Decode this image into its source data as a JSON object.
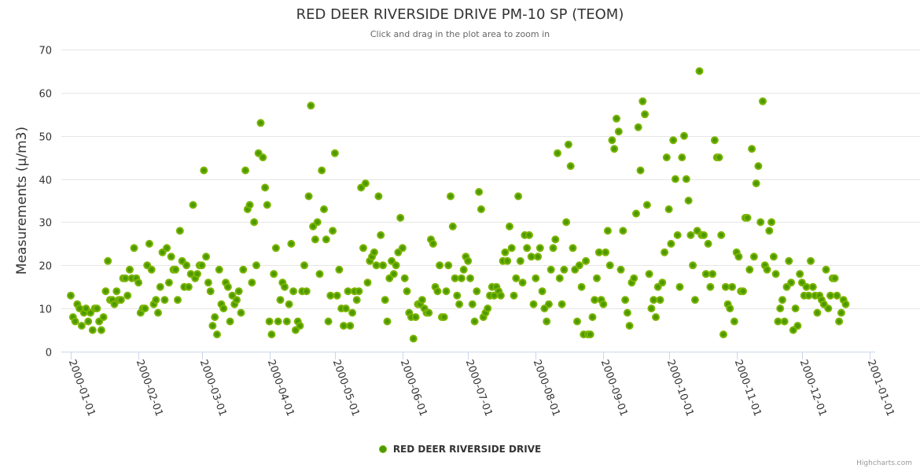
{
  "chart_data": {
    "type": "scatter",
    "title": "RED DEER RIVERSIDE DRIVE PM-10 SP (TEOM)",
    "subtitle": "Click and drag in the plot area to zoom in",
    "xlabel": "",
    "ylabel": "Measurements (µ/m3)",
    "ylim": [
      0,
      70
    ],
    "yticks": [
      "0",
      "10",
      "20",
      "30",
      "40",
      "50",
      "60",
      "70"
    ],
    "xlim": [
      "2000-01-01",
      "2001-01-01"
    ],
    "xticks": [
      "2000-01-01",
      "2000-02-01",
      "2000-03-01",
      "2000-04-01",
      "2000-05-01",
      "2000-06-01",
      "2000-07-01",
      "2000-08-01",
      "2000-09-01",
      "2000-10-01",
      "2000-11-01",
      "2000-12-01",
      "2001-01-01"
    ],
    "grid": true,
    "legend_position": "bottom-center",
    "series": [
      {
        "name": "RED DEER RIVERSIDE DRIVE",
        "start": "2000-01-01",
        "values": [
          13,
          8,
          7,
          11,
          10,
          6,
          9,
          10,
          7,
          9,
          5,
          10,
          10,
          7,
          5,
          8,
          14,
          21,
          12,
          12,
          11,
          14,
          12,
          12,
          17,
          17,
          13,
          19,
          17,
          24,
          17,
          16,
          9,
          10,
          10,
          20,
          25,
          19,
          11,
          12,
          9,
          15,
          23,
          12,
          24,
          16,
          22,
          19,
          19,
          12,
          28,
          21,
          15,
          20,
          15,
          18,
          34,
          17,
          18,
          20,
          20,
          42,
          22,
          16,
          14,
          6,
          8,
          4,
          19,
          11,
          10,
          16,
          15,
          7,
          13,
          11,
          12,
          14,
          9,
          19,
          42,
          33,
          34,
          16,
          30,
          20,
          46,
          53,
          45,
          38,
          34,
          7,
          4,
          18,
          24,
          7,
          12,
          16,
          15,
          7,
          11,
          25,
          14,
          5,
          7,
          6,
          14,
          20,
          14,
          36,
          57,
          29,
          26,
          30,
          18,
          42,
          33,
          26,
          7,
          13,
          28,
          46,
          13,
          19,
          10,
          6,
          10,
          14,
          6,
          9,
          14,
          12,
          14,
          38,
          24,
          39,
          16,
          21,
          22,
          23,
          20,
          36,
          27,
          20,
          12,
          7,
          17,
          21,
          18,
          20,
          23,
          31,
          24,
          17,
          14,
          9,
          8,
          3,
          8,
          11,
          11,
          12,
          10,
          9,
          9,
          26,
          25,
          15,
          14,
          20,
          8,
          8,
          14,
          20,
          36,
          29,
          17,
          13,
          11,
          17,
          19,
          22,
          21,
          17,
          11,
          7,
          14,
          37,
          33,
          8,
          9,
          10,
          13,
          15,
          13,
          15,
          14,
          13,
          21,
          23,
          21,
          29,
          24,
          13,
          17,
          36,
          21,
          16,
          27,
          24,
          27,
          22,
          11,
          17,
          22,
          24,
          14,
          10,
          7,
          11,
          19,
          24,
          26,
          46,
          17,
          11,
          19,
          30,
          48,
          43,
          24,
          19,
          7,
          20,
          15,
          4,
          21,
          4,
          4,
          8,
          12,
          17,
          23,
          12,
          11,
          23,
          28,
          20,
          49,
          47,
          54,
          51,
          19,
          28,
          12,
          9,
          6,
          16,
          17,
          32,
          52,
          42,
          58,
          55,
          34,
          18,
          10,
          12,
          8,
          15,
          12,
          16,
          23,
          45,
          33,
          25,
          49,
          40,
          27,
          15,
          45,
          50,
          40,
          35,
          27,
          20,
          12,
          28,
          65,
          27,
          27,
          18,
          25,
          15,
          18,
          49,
          45,
          45,
          27,
          4,
          15,
          11,
          10,
          15,
          7,
          23,
          22,
          14,
          14,
          31,
          31,
          19,
          47,
          22,
          39,
          43,
          30,
          58,
          20,
          19,
          28,
          30,
          22,
          18,
          7,
          10,
          12,
          7,
          15,
          21,
          16,
          5,
          10,
          6,
          18,
          16,
          13,
          15,
          13,
          21,
          15,
          13,
          9,
          13,
          12,
          11,
          19,
          10,
          13,
          17,
          17,
          13,
          7,
          9,
          12,
          11
        ]
      }
    ]
  },
  "legend": {
    "label": "RED DEER RIVERSIDE DRIVE"
  },
  "credits": "Highcharts.com",
  "colors": {
    "marker_fill": "#4c9a00",
    "marker_stroke": "#7cb500",
    "grid": "#e6e6e6",
    "axis": "#ccd6eb"
  }
}
